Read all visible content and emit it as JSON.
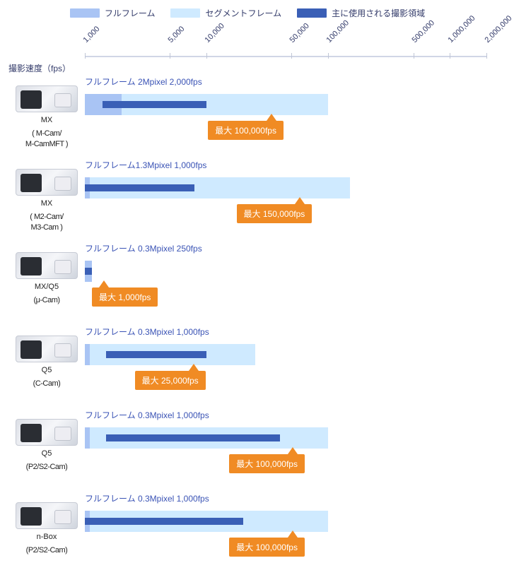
{
  "legend": {
    "full": {
      "label": "フルフレーム",
      "color": "#a9c4f4"
    },
    "seg": {
      "label": "セグメントフレーム",
      "color": "#cfeaff"
    },
    "dark": {
      "label": "主に使用される撮影領域",
      "color": "#3a5fb6"
    }
  },
  "axis": {
    "title": "撮影速度（fps）",
    "min_log": 3.0,
    "max_log": 6.3,
    "ticks": [
      {
        "label": "1,000",
        "log": 3.0
      },
      {
        "label": "5,000",
        "log": 3.699
      },
      {
        "label": "10,000",
        "log": 4.0
      },
      {
        "label": "50,000",
        "log": 4.699
      },
      {
        "label": "100,000",
        "log": 5.0
      },
      {
        "label": "500,000",
        "log": 5.699
      },
      {
        "label": "1,000,000",
        "log": 6.0
      },
      {
        "label": "2,000,000",
        "log": 6.301
      }
    ]
  },
  "colors": {
    "text_axis": "#333b6a",
    "text_full": "#3a53b5",
    "callout_bg": "#f08b24",
    "callout_fg": "#ffffff",
    "bg": "#ffffff"
  },
  "rows": [
    {
      "name_line1": "MX",
      "name_line2": "( M-Cam/\nM-CamMFT )",
      "full_label": "フルフレーム 2Mpixel  2,000fps",
      "full_start_log": 3.0,
      "full_end_log": 3.301,
      "seg_start_log": 3.0,
      "seg_end_log": 5.0,
      "dark_start_log": 3.146,
      "dark_end_log": 4.0,
      "callout": "最大 100,000fps",
      "callout_at_log": 5.0,
      "callout_tip": "right",
      "callout_shift": -170
    },
    {
      "name_line1": "MX",
      "name_line2": "( M2-Cam/\nM3-Cam )",
      "full_label": "フルフレーム1.3Mpixel 1,000fps",
      "full_start_log": 3.0,
      "full_end_log": 3.0,
      "seg_start_log": 3.0,
      "seg_end_log": 5.176,
      "dark_start_log": 3.0,
      "dark_end_log": 3.903,
      "callout": "最大 150,000fps",
      "callout_at_log": 5.176,
      "callout_tip": "right",
      "callout_shift": -160
    },
    {
      "name_line1": "MX/Q5",
      "name_line2": "(μ-Cam)",
      "full_label": "フルフレーム 0.3Mpixel  250fps",
      "full_start_log": 3.0,
      "full_end_log": 3.0,
      "seg_start_log": 3.0,
      "seg_end_log": 3.0,
      "dark_start_log": 3.0,
      "dark_end_log": 3.0,
      "small_blob": true,
      "callout": "最大 1,000fps",
      "callout_at_log": 3.0,
      "callout_tip": "left",
      "callout_shift": 10
    },
    {
      "name_line1": "Q5",
      "name_line2": "(C-Cam)",
      "full_label": "フルフレーム 0.3Mpixel  1,000fps",
      "full_start_log": 3.0,
      "full_end_log": 3.0,
      "seg_start_log": 3.0,
      "seg_end_log": 4.398,
      "dark_start_log": 3.176,
      "dark_end_log": 4.0,
      "callout": "最大 25,000fps",
      "callout_at_log": 4.398,
      "callout_tip": "right",
      "callout_shift": -170
    },
    {
      "name_line1": "Q5",
      "name_line2": "(P2/S2-Cam)",
      "full_label": "フルフレーム 0.3Mpixel  1,000fps",
      "full_start_log": 3.0,
      "full_end_log": 3.0,
      "seg_start_log": 3.0,
      "seg_end_log": 5.0,
      "dark_start_log": 3.176,
      "dark_end_log": 4.602,
      "callout": "最大 100,000fps",
      "callout_at_log": 5.0,
      "callout_tip": "right",
      "callout_shift": -140
    },
    {
      "name_line1": "n-Box",
      "name_line2": "(P2/S2-Cam)",
      "full_label": "フルフレーム 0.3Mpixel  1,000fps",
      "full_start_log": 3.0,
      "full_end_log": 3.0,
      "seg_start_log": 3.0,
      "seg_end_log": 5.0,
      "dark_start_log": 3.0,
      "dark_end_log": 4.301,
      "callout": "最大 100,000fps",
      "callout_at_log": 5.0,
      "callout_tip": "right",
      "callout_shift": -140
    }
  ]
}
